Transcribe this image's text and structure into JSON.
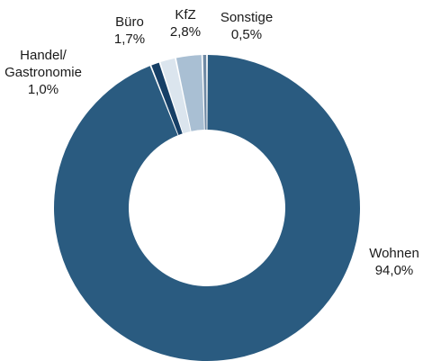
{
  "chart_data": {
    "type": "pie",
    "variant": "donut",
    "legend": "none",
    "slices": [
      {
        "label": "Wohnen",
        "label_lines": [
          "Wohnen"
        ],
        "value": 94.0,
        "value_text": "94,0%",
        "color": "#2a5b80"
      },
      {
        "label": "Handel/Gastronomie",
        "label_lines": [
          "Handel/",
          "Gastronomie"
        ],
        "value": 1.0,
        "value_text": "1,0%",
        "color": "#163f66"
      },
      {
        "label": "Büro",
        "label_lines": [
          "Büro"
        ],
        "value": 1.7,
        "value_text": "1,7%",
        "color": "#dbe5ee"
      },
      {
        "label": "KfZ",
        "label_lines": [
          "KfZ"
        ],
        "value": 2.8,
        "value_text": "2,8%",
        "color": "#a9bfd3"
      },
      {
        "label": "Sonstige",
        "label_lines": [
          "Sonstige"
        ],
        "value": 0.5,
        "value_text": "0,5%",
        "color": "#6f8aa5"
      }
    ]
  }
}
